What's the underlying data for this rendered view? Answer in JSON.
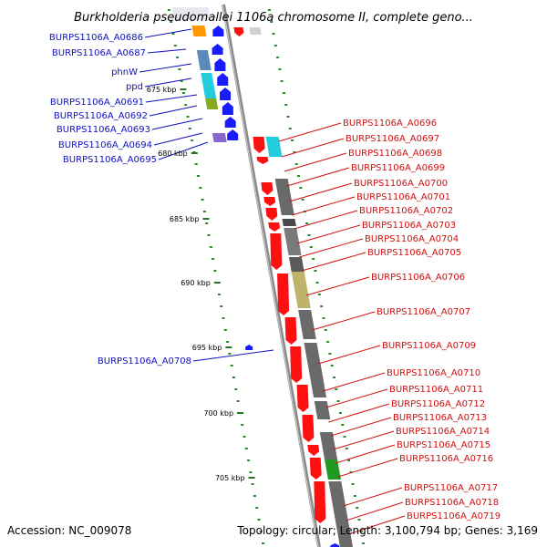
{
  "header": {
    "title": "Burkholderia pseudomallei 1106a chromosome II, complete geno..."
  },
  "footer": {
    "accession": "Accession: NC_009078",
    "topology": "Topology: circular; Length: 3,100,794 bp; Genes: 3,169"
  },
  "colors": {
    "forward": "#1a1aff",
    "reverse": "#ff1010",
    "backbone": "#808080"
  },
  "ticks": [
    "675 kbp",
    "680 kbp",
    "685 kbp",
    "690 kbp",
    "695 kbp",
    "700 kbp",
    "705 kbp"
  ],
  "genes_left": [
    "BURPS1106A_A0686",
    "BURPS1106A_A0687",
    "phnW",
    "ppd",
    "BURPS1106A_A0691",
    "BURPS1106A_A0692",
    "BURPS1106A_A0693",
    "BURPS1106A_A0694",
    "BURPS1106A_A0695",
    "BURPS1106A_A0708"
  ],
  "genes_right": [
    "BURPS1106A_A0696",
    "BURPS1106A_A0697",
    "BURPS1106A_A0698",
    "BURPS1106A_A0699",
    "BURPS1106A_A0700",
    "BURPS1106A_A0701",
    "BURPS1106A_A0702",
    "BURPS1106A_A0703",
    "BURPS1106A_A0704",
    "BURPS1106A_A0705",
    "BURPS1106A_A0706",
    "BURPS1106A_A0707",
    "BURPS1106A_A0709",
    "BURPS1106A_A0710",
    "BURPS1106A_A0711",
    "BURPS1106A_A0712",
    "BURPS1106A_A0713",
    "BURPS1106A_A0714",
    "BURPS1106A_A0715",
    "BURPS1106A_A0716",
    "BURPS1106A_A0717",
    "BURPS1106A_A0718",
    "BURPS1106A_A0719"
  ]
}
